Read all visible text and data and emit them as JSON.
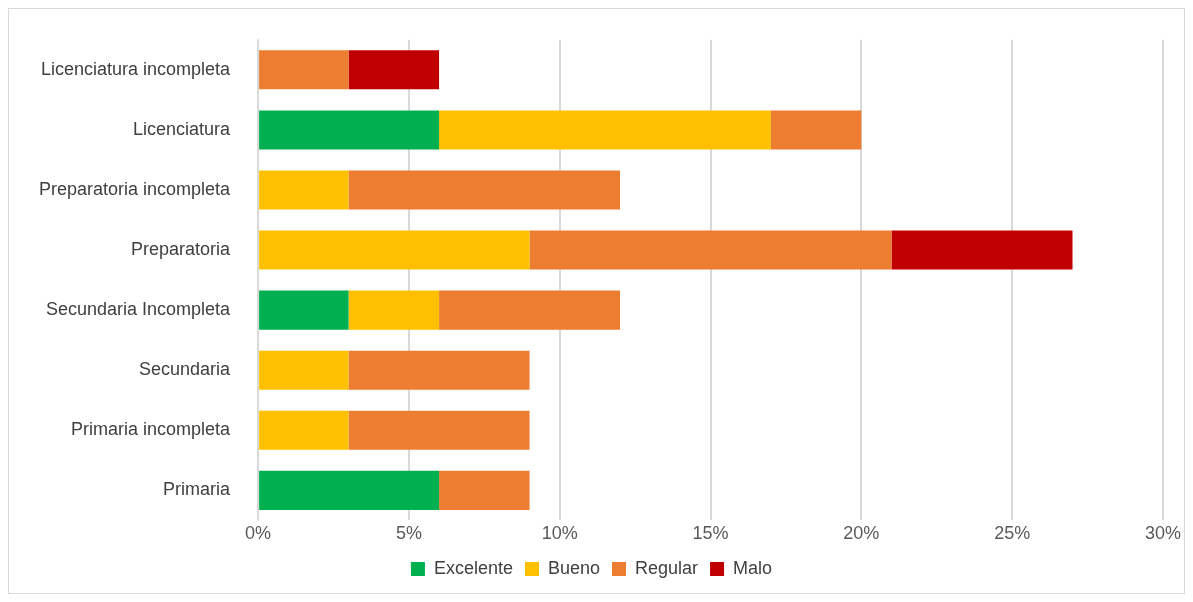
{
  "chart_data": {
    "type": "bar",
    "orientation": "horizontal",
    "stacked": true,
    "categories": [
      "Licenciatura incompleta",
      "Licenciatura",
      "Preparatoria incompleta",
      "Preparatoria",
      "Secundaria Incompleta",
      "Secundaria",
      "Primaria incompleta",
      "Primaria"
    ],
    "series": [
      {
        "name": "Excelente",
        "color": "#00b050",
        "values": [
          0,
          6,
          0,
          0,
          3,
          0,
          0,
          6
        ]
      },
      {
        "name": "Bueno",
        "color": "#ffc000",
        "values": [
          0,
          11,
          3,
          9,
          3,
          3,
          3,
          0
        ]
      },
      {
        "name": "Regular",
        "color": "#ed7d31",
        "values": [
          3,
          3,
          9,
          12,
          6,
          6,
          6,
          3
        ]
      },
      {
        "name": "Malo",
        "color": "#c00000",
        "values": [
          3,
          0,
          0,
          6,
          0,
          0,
          0,
          0
        ]
      }
    ],
    "xlim": [
      0,
      30
    ],
    "xticks": [
      {
        "value": 0,
        "label": "0%"
      },
      {
        "value": 5,
        "label": "5%"
      },
      {
        "value": 10,
        "label": "10%"
      },
      {
        "value": 15,
        "label": "15%"
      },
      {
        "value": 20,
        "label": "20%"
      },
      {
        "value": 25,
        "label": "25%"
      },
      {
        "value": 30,
        "label": "30%"
      }
    ],
    "grid": "x",
    "legend": "bottom"
  }
}
